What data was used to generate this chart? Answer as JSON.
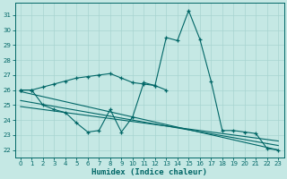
{
  "background_color": "#c5e8e4",
  "grid_color": "#a8d4d0",
  "line_color": "#006666",
  "xlabel": "Humidex (Indice chaleur)",
  "xlim": [
    -0.5,
    23.5
  ],
  "ylim": [
    21.5,
    31.8
  ],
  "yticks": [
    22,
    23,
    24,
    25,
    26,
    27,
    28,
    29,
    30,
    31
  ],
  "xticks": [
    0,
    1,
    2,
    3,
    4,
    5,
    6,
    7,
    8,
    9,
    10,
    11,
    12,
    13,
    14,
    15,
    16,
    17,
    18,
    19,
    20,
    21,
    22,
    23
  ],
  "peak_series_x": [
    0,
    1,
    2,
    3,
    4,
    5,
    6,
    7,
    8,
    9,
    10,
    11,
    12,
    13,
    14,
    15,
    16,
    17,
    18,
    19,
    20,
    21,
    22,
    23
  ],
  "peak_series_y": [
    26.0,
    26.0,
    25.0,
    24.7,
    24.5,
    23.8,
    23.2,
    23.3,
    24.7,
    23.2,
    24.2,
    26.5,
    26.3,
    29.5,
    29.3,
    31.3,
    29.4,
    26.6,
    23.3,
    23.3,
    23.2,
    23.1,
    22.1,
    22.0
  ],
  "upper_series_x": [
    0,
    1,
    2,
    3,
    4,
    5,
    6,
    7,
    8,
    9,
    10,
    11,
    12,
    13
  ],
  "upper_series_y": [
    26.0,
    26.0,
    26.2,
    26.4,
    26.6,
    26.8,
    26.9,
    27.0,
    27.1,
    26.8,
    26.5,
    26.4,
    26.3,
    26.0
  ],
  "reg_line1_x": [
    0,
    23
  ],
  "reg_line1_y": [
    25.9,
    22.0
  ],
  "reg_line2_x": [
    0,
    23
  ],
  "reg_line2_y": [
    25.3,
    22.3
  ],
  "reg_line3_x": [
    0,
    23
  ],
  "reg_line3_y": [
    24.9,
    22.6
  ]
}
